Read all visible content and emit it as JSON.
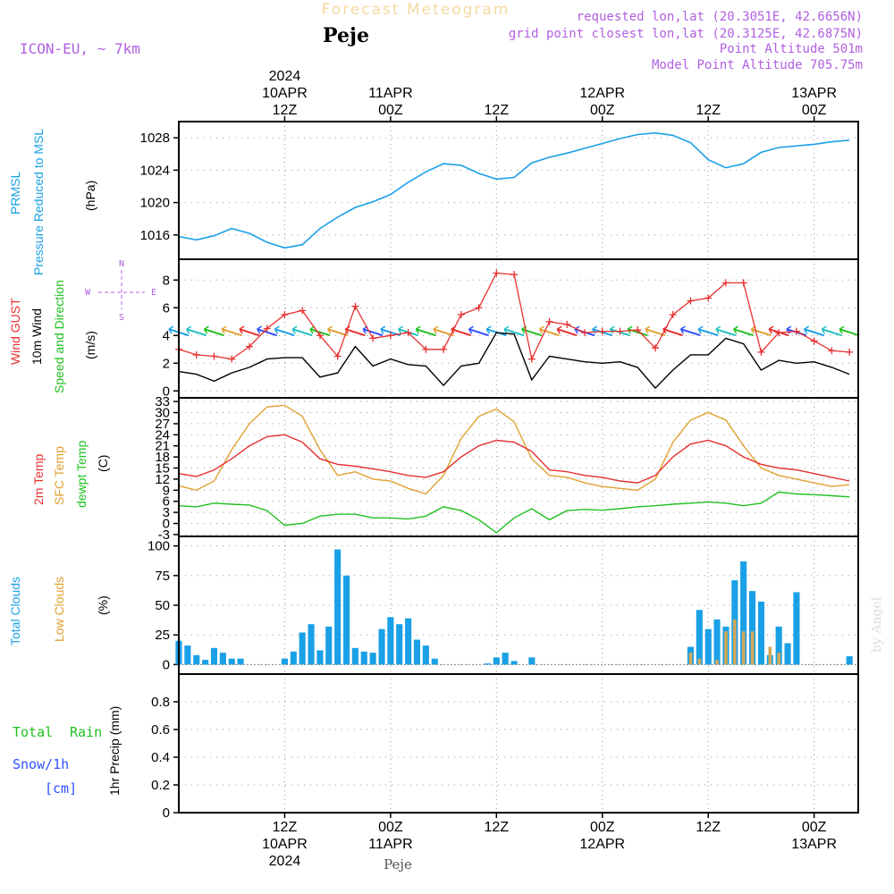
{
  "header": {
    "title": "Forecast Meteogram",
    "location": "Peje",
    "model": "ICON-EU, ~ 7km",
    "requested_point": "requested lon,lat (20.3051E, 42.6656N)",
    "grid_point": "grid point closest lon,lat (20.3125E, 42.6875N)",
    "point_altitude": "Point Altitude 501m",
    "model_altitude": "Model Point Altitude 705.75m",
    "footer_location": "Peje",
    "credit": "by Angel"
  },
  "colors": {
    "pressure": "#1aa0e6",
    "gust": "#e63030",
    "wind": "#000000",
    "temp2m": "#e63030",
    "sfc": "#e0a030",
    "dew": "#20c020",
    "clouds_total": "#1aa0e6",
    "clouds_low": "#d4a857",
    "rain": "#20c020",
    "snow": "#3050ff",
    "labels_purple": "#b060e0"
  },
  "time_axis": {
    "top_ticks": [
      {
        "t": 12,
        "lines": [
          "2024",
          "10APR",
          "12Z"
        ]
      },
      {
        "t": 24,
        "lines": [
          "11APR",
          "00Z"
        ]
      },
      {
        "t": 36,
        "lines": [
          "12Z"
        ]
      },
      {
        "t": 48,
        "lines": [
          "12APR",
          "00Z"
        ]
      },
      {
        "t": 60,
        "lines": [
          "12Z"
        ]
      },
      {
        "t": 72,
        "lines": [
          "13APR",
          "00Z"
        ]
      }
    ],
    "bottom_ticks": [
      {
        "t": 12,
        "lines": [
          "12Z",
          "10APR",
          "2024"
        ]
      },
      {
        "t": 24,
        "lines": [
          "00Z",
          "11APR"
        ]
      },
      {
        "t": 36,
        "lines": [
          "12Z"
        ]
      },
      {
        "t": 48,
        "lines": [
          "00Z",
          "12APR"
        ]
      },
      {
        "t": 60,
        "lines": [
          "12Z"
        ]
      },
      {
        "t": 72,
        "lines": [
          "00Z",
          "13APR"
        ]
      }
    ],
    "range": [
      0,
      77
    ]
  },
  "chart_data": [
    {
      "type": "line",
      "id": "pressure",
      "title": "PRMSL Pressure Reduced to MSL",
      "ylabel": "(hPa)",
      "ylim": [
        1013,
        1030
      ],
      "yticks": [
        1016,
        1020,
        1024,
        1028
      ],
      "x": [
        0,
        2,
        4,
        6,
        8,
        10,
        12,
        14,
        16,
        18,
        20,
        22,
        24,
        26,
        28,
        30,
        32,
        34,
        36,
        38,
        40,
        42,
        44,
        46,
        48,
        50,
        52,
        54,
        56,
        58,
        60,
        62,
        64,
        66,
        68,
        70,
        72,
        74,
        76
      ],
      "series": [
        {
          "name": "PRMSL",
          "values": [
            1015.8,
            1015.4,
            1015.9,
            1016.8,
            1016.2,
            1015.1,
            1014.4,
            1014.8,
            1016.8,
            1018.2,
            1019.4,
            1020.1,
            1021.0,
            1022.5,
            1023.8,
            1024.8,
            1024.6,
            1023.6,
            1022.9,
            1023.1,
            1024.9,
            1025.6,
            1026.1,
            1026.7,
            1027.3,
            1027.9,
            1028.4,
            1028.6,
            1028.3,
            1027.4,
            1025.3,
            1024.3,
            1024.8,
            1026.2,
            1026.8,
            1027.0,
            1027.2,
            1027.5,
            1027.7
          ]
        }
      ]
    },
    {
      "type": "line",
      "id": "wind",
      "title": "Wind GUST 10m Wind Speed and Direction",
      "ylabel": "(m/s)",
      "compass": [
        "N",
        "S",
        "E",
        "W"
      ],
      "ylim": [
        -0.5,
        9.5
      ],
      "yticks": [
        0,
        2,
        4,
        6,
        8
      ],
      "x": [
        0,
        2,
        4,
        6,
        8,
        10,
        12,
        14,
        16,
        18,
        20,
        22,
        24,
        26,
        28,
        30,
        32,
        34,
        36,
        38,
        40,
        42,
        44,
        46,
        48,
        50,
        52,
        54,
        56,
        58,
        60,
        62,
        64,
        66,
        68,
        70,
        72,
        74,
        76
      ],
      "series": [
        {
          "name": "Wind GUST",
          "values": [
            3.0,
            2.6,
            2.5,
            2.3,
            3.2,
            4.5,
            5.5,
            5.8,
            4.0,
            2.5,
            6.1,
            3.8,
            4.0,
            4.2,
            3.0,
            3.0,
            5.5,
            6.0,
            8.5,
            8.4,
            2.3,
            5.0,
            4.8,
            4.2,
            4.3,
            4.3,
            4.4,
            3.1,
            5.5,
            6.5,
            6.7,
            7.8,
            7.8,
            2.8,
            4.2,
            4.3,
            3.6,
            2.9,
            2.8
          ]
        },
        {
          "name": "10m Wind",
          "values": [
            1.4,
            1.2,
            0.7,
            1.3,
            1.7,
            2.3,
            2.4,
            2.4,
            1.0,
            1.3,
            3.2,
            1.8,
            2.3,
            1.9,
            1.8,
            0.4,
            1.8,
            2.0,
            4.2,
            4.1,
            0.8,
            2.5,
            2.3,
            2.1,
            2.0,
            2.1,
            1.7,
            0.2,
            1.5,
            2.6,
            2.6,
            3.8,
            3.4,
            1.5,
            2.2,
            2.0,
            2.1,
            1.7,
            1.2
          ]
        }
      ],
      "arrows": {
        "x": [
          0,
          2,
          4,
          6,
          8,
          10,
          12,
          14,
          16,
          18,
          20,
          22,
          24,
          26,
          28,
          30,
          32,
          34,
          36,
          38,
          40,
          42,
          44,
          46,
          48,
          50,
          52,
          54,
          56,
          58,
          60,
          62,
          64,
          66,
          68,
          70,
          72,
          74,
          76
        ],
        "y": 4.2
      }
    },
    {
      "type": "line",
      "id": "temperature",
      "title": "2m Temp SFC Temp dewpt Temp",
      "ylabel": "(C)",
      "ylim": [
        -3.5,
        34
      ],
      "yticks": [
        -3,
        0,
        3,
        6,
        9,
        12,
        15,
        18,
        21,
        24,
        27,
        30,
        33
      ],
      "x": [
        0,
        2,
        4,
        6,
        8,
        10,
        12,
        14,
        16,
        18,
        20,
        22,
        24,
        26,
        28,
        30,
        32,
        34,
        36,
        38,
        40,
        42,
        44,
        46,
        48,
        50,
        52,
        54,
        56,
        58,
        60,
        62,
        64,
        66,
        68,
        70,
        72,
        74,
        76
      ],
      "series": [
        {
          "name": "2m Temp",
          "values": [
            13.5,
            12.7,
            14.5,
            17.5,
            21.0,
            23.5,
            24.0,
            22.0,
            17.5,
            16.0,
            15.5,
            14.8,
            14.0,
            13.0,
            12.5,
            14.0,
            18.0,
            21.0,
            22.5,
            22.0,
            19.5,
            14.5,
            14.0,
            13.0,
            12.5,
            11.5,
            11.0,
            13.0,
            18.0,
            21.5,
            22.5,
            21.0,
            18.0,
            16.0,
            15.0,
            14.5,
            13.5,
            12.5,
            11.5
          ]
        },
        {
          "name": "SFC Temp",
          "values": [
            10.2,
            9.0,
            11.5,
            20.0,
            27.0,
            31.5,
            32.0,
            29.0,
            20.0,
            13.0,
            14.0,
            12.0,
            11.5,
            9.5,
            8.0,
            13.0,
            23.0,
            29.0,
            31.0,
            27.5,
            17.5,
            13.0,
            12.5,
            11.0,
            10.0,
            9.5,
            9.0,
            12.0,
            22.0,
            28.0,
            30.0,
            28.0,
            21.0,
            15.0,
            13.0,
            12.0,
            11.0,
            10.0,
            10.5
          ]
        },
        {
          "name": "dewpt Temp",
          "values": [
            4.8,
            4.5,
            5.5,
            5.2,
            5.0,
            3.5,
            -0.5,
            0.0,
            2.0,
            2.5,
            2.5,
            1.5,
            1.5,
            1.2,
            2.0,
            4.5,
            3.5,
            1.0,
            -2.5,
            1.5,
            4.0,
            1.0,
            3.5,
            3.8,
            3.6,
            4.0,
            4.5,
            4.8,
            5.2,
            5.5,
            5.8,
            5.5,
            4.8,
            5.5,
            8.5,
            8.0,
            7.8,
            7.5,
            7.2
          ]
        }
      ]
    },
    {
      "type": "bar",
      "id": "clouds",
      "title": "Total Clouds Low Clouds",
      "ylabel": "(%)",
      "ylim": [
        -8,
        108
      ],
      "yticks": [
        0,
        25,
        50,
        75,
        100
      ],
      "x": [
        0,
        1,
        2,
        3,
        4,
        5,
        6,
        7,
        8,
        9,
        10,
        11,
        12,
        13,
        14,
        15,
        16,
        17,
        18,
        19,
        20,
        21,
        22,
        23,
        24,
        25,
        26,
        27,
        28,
        29,
        30,
        31,
        32,
        33,
        34,
        35,
        36,
        37,
        38,
        39,
        40,
        41,
        42,
        43,
        44,
        45,
        46,
        47,
        48,
        49,
        50,
        51,
        52,
        53,
        54,
        55,
        56,
        57,
        58,
        59,
        60,
        61,
        62,
        63,
        64,
        65,
        66,
        67,
        68,
        69,
        70,
        71,
        72,
        73,
        74,
        75,
        76
      ],
      "series": [
        {
          "name": "Total Clouds",
          "values": [
            20,
            16,
            8,
            4,
            14,
            10,
            5,
            5,
            0,
            0,
            0,
            0,
            5,
            11,
            27,
            34,
            12,
            32,
            97,
            75,
            14,
            11,
            10,
            30,
            40,
            34,
            39,
            21,
            16,
            5,
            0,
            0,
            0,
            0,
            0,
            1,
            6,
            10,
            3,
            0,
            6,
            0,
            0,
            0,
            0,
            0,
            0,
            0,
            0,
            0,
            0,
            0,
            0,
            0,
            0,
            0,
            0,
            0,
            15,
            46,
            30,
            38,
            32,
            71,
            87,
            62,
            53,
            8,
            32,
            18,
            61,
            0,
            0,
            0,
            0,
            0,
            7
          ]
        },
        {
          "name": "Low Clouds",
          "values": [
            0,
            0,
            0,
            0,
            0,
            0,
            0,
            0,
            0,
            0,
            0,
            0,
            0,
            0,
            0,
            0,
            0,
            0,
            0,
            0,
            0,
            0,
            0,
            0,
            0,
            0,
            0,
            0,
            0,
            0,
            0,
            0,
            0,
            0,
            0,
            0,
            0,
            0,
            0,
            0,
            0,
            0,
            0,
            0,
            0,
            0,
            0,
            0,
            0,
            0,
            0,
            0,
            0,
            0,
            0,
            0,
            0,
            0,
            10,
            5,
            0,
            4,
            28,
            38,
            28,
            28,
            0,
            15,
            10,
            0,
            0,
            0,
            0,
            0,
            0,
            0,
            0
          ]
        }
      ]
    },
    {
      "type": "bar",
      "id": "precip",
      "title": "Total Rain Snow/1h [cm]",
      "ylabel": "1hr Precip (mm)",
      "ylim": [
        0,
        1.0
      ],
      "yticks": [
        0,
        0.2,
        0.4,
        0.6,
        0.8
      ],
      "ytick_labels": [
        "0",
        "0.2",
        "0.4",
        "0.6",
        "0.8"
      ],
      "series": [
        {
          "name": "Total Rain",
          "values": []
        }
      ]
    }
  ],
  "labels": {
    "pressure": {
      "l1": "PRMSL",
      "l2": "Pressure Reduced to MSL",
      "l3": "(hPa)"
    },
    "wind": {
      "l1": "Wind GUST",
      "l2": "10m Wind",
      "l3": "Speed and Direction",
      "l4": "(m/s)"
    },
    "temp": {
      "l1": "2m Temp",
      "l2": "SFC Temp",
      "l3": "dewpt Temp",
      "l4": "(C)"
    },
    "clouds": {
      "l1": "Total Clouds",
      "l2": "Low Clouds",
      "l3": "(%)"
    },
    "precip": {
      "l1": "Total",
      "l2": "Rain",
      "l3": "Snow/1h",
      "l4": "[cm]",
      "l5": "1hr Precip (mm)"
    }
  }
}
